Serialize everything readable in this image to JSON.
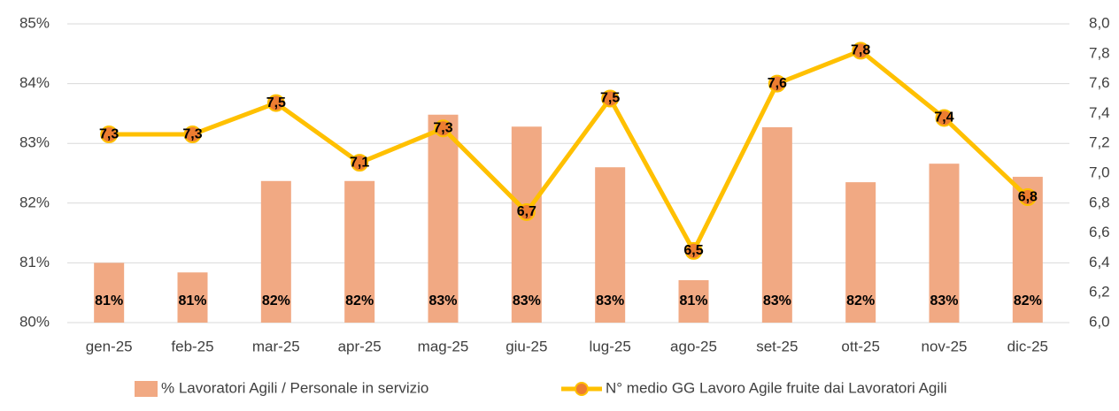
{
  "chart_data": {
    "type": "bar-line",
    "categories": [
      "gen-25",
      "feb-25",
      "mar-25",
      "apr-25",
      "mag-25",
      "giu-25",
      "lug-25",
      "ago-25",
      "set-25",
      "ott-25",
      "nov-25",
      "dic-25"
    ],
    "series": [
      {
        "name": "% Lavoratori Agili / Personale in servizio",
        "type": "bar",
        "color": "#f1a983",
        "values": [
          81.0,
          80.84,
          82.37,
          82.37,
          83.48,
          83.28,
          82.6,
          80.71,
          83.27,
          82.35,
          82.66,
          82.44
        ],
        "value_labels": [
          "81%",
          "81%",
          "82%",
          "82%",
          "83%",
          "83%",
          "83%",
          "81%",
          "83%",
          "82%",
          "83%",
          "82%"
        ]
      },
      {
        "name": "N° medio GG Lavoro Agile fruite dai Lavoratori Agili",
        "type": "line",
        "axis": "y2",
        "color": "#ffc000",
        "marker_color": "#ed7d31",
        "values": [
          7.26,
          7.26,
          7.47,
          7.07,
          7.3,
          6.74,
          7.5,
          6.48,
          7.6,
          7.82,
          7.37,
          6.84
        ],
        "value_labels": [
          "7,3",
          "7,3",
          "7,5",
          "7,1",
          "7,3",
          "6,7",
          "7,5",
          "6,5",
          "7,6",
          "7,8",
          "7,4",
          "6,8"
        ]
      }
    ],
    "ylim": [
      80,
      85
    ],
    "yticks": [
      {
        "value": 80,
        "label": "80%"
      },
      {
        "value": 81,
        "label": "81%"
      },
      {
        "value": 82,
        "label": "82%"
      },
      {
        "value": 83,
        "label": "83%"
      },
      {
        "value": 84,
        "label": "84%"
      },
      {
        "value": 85,
        "label": "85%"
      }
    ],
    "y2lim": [
      6.0,
      8.0
    ],
    "y2ticks": [
      {
        "value": 6.0,
        "label": "6,0"
      },
      {
        "value": 6.2,
        "label": "6,2"
      },
      {
        "value": 6.4,
        "label": "6,4"
      },
      {
        "value": 6.6,
        "label": "6,6"
      },
      {
        "value": 6.8,
        "label": "6,8"
      },
      {
        "value": 7.0,
        "label": "7,0"
      },
      {
        "value": 7.2,
        "label": "7,2"
      },
      {
        "value": 7.4,
        "label": "7,4"
      },
      {
        "value": 7.6,
        "label": "7,6"
      },
      {
        "value": 7.8,
        "label": "7,8"
      },
      {
        "value": 8.0,
        "label": "8,0"
      }
    ],
    "grid": true,
    "legend": "bottom"
  }
}
